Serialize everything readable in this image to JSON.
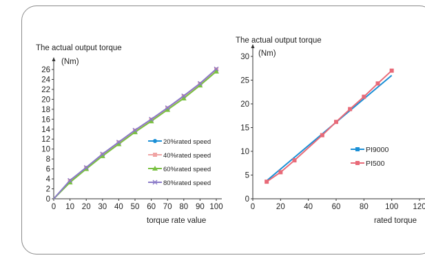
{
  "chart_data": [
    {
      "type": "line",
      "title": "The actual output torque",
      "ylabel": "(Nm)",
      "xlabel": "torque rate value",
      "x": [
        0,
        10,
        20,
        30,
        40,
        50,
        60,
        70,
        80,
        90,
        100
      ],
      "xticks": [
        0,
        10,
        20,
        30,
        40,
        50,
        60,
        70,
        80,
        90,
        100
      ],
      "yticks": [
        0,
        2,
        4,
        6,
        8,
        10,
        12,
        14,
        16,
        18,
        20,
        22,
        24,
        26
      ],
      "xlim": [
        0,
        100
      ],
      "ylim": [
        0,
        26
      ],
      "legend_position": "right",
      "series": [
        {
          "name": "20%rated speed",
          "color": "#1a8fd6",
          "marker": "circle",
          "values": [
            0,
            3.6,
            6.2,
            8.9,
            11.3,
            13.7,
            15.9,
            18.2,
            20.6,
            23.1,
            26.0
          ]
        },
        {
          "name": "40%rated speed",
          "color": "#f0a4a4",
          "marker": "square",
          "values": [
            0,
            3.6,
            6.2,
            8.9,
            11.3,
            13.7,
            15.9,
            18.2,
            20.6,
            23.1,
            26.0
          ]
        },
        {
          "name": "60%rated speed",
          "color": "#7ac142",
          "marker": "triangle",
          "values": [
            0,
            3.3,
            6.0,
            8.6,
            11.0,
            13.4,
            15.6,
            17.9,
            20.2,
            22.8,
            25.6
          ]
        },
        {
          "name": "80%rated speed",
          "color": "#8a7ac8",
          "marker": "cross",
          "values": [
            0,
            3.7,
            6.3,
            9.0,
            11.4,
            13.8,
            16.0,
            18.3,
            20.7,
            23.2,
            26.1
          ]
        }
      ]
    },
    {
      "type": "line",
      "title": "The actual output torque",
      "ylabel": "(Nm)",
      "xlabel": "rated torque",
      "xticks": [
        0,
        20,
        40,
        60,
        80,
        100,
        120
      ],
      "yticks": [
        0,
        5,
        10,
        15,
        20,
        25,
        30
      ],
      "xlim": [
        0,
        120
      ],
      "ylim": [
        0,
        30
      ],
      "legend_position": "right",
      "series": [
        {
          "name": "PI9000",
          "color": "#1a8fd6",
          "marker": "square",
          "x": [
            10,
            100
          ],
          "values": [
            3.8,
            26.0
          ]
        },
        {
          "name": "PI500",
          "color": "#e86a78",
          "marker": "square",
          "x": [
            10,
            20,
            30,
            50,
            60,
            70,
            80,
            90,
            100
          ],
          "values": [
            3.6,
            5.6,
            8.1,
            13.4,
            16.2,
            18.9,
            21.5,
            24.3,
            27.0
          ]
        }
      ]
    }
  ]
}
